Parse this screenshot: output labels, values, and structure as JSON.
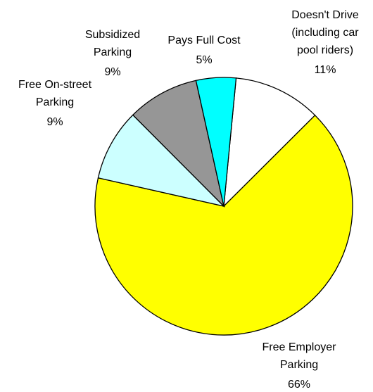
{
  "chart_data": {
    "type": "pie",
    "categories": [
      [
        "Doesn't Drive",
        "(including car",
        "pool riders)"
      ],
      [
        "Free Employer",
        "Parking"
      ],
      [
        "Free On-street",
        "Parking"
      ],
      [
        "Subsidized",
        "Parking"
      ],
      [
        "Pays Full Cost"
      ]
    ],
    "values": [
      11,
      66,
      9,
      9,
      5
    ],
    "value_labels": [
      "11%",
      "66%",
      "9%",
      "9%",
      "5%"
    ],
    "colors": [
      "#ffffff",
      "#ffff00",
      "#ccffff",
      "#969696",
      "#00ffff"
    ]
  }
}
